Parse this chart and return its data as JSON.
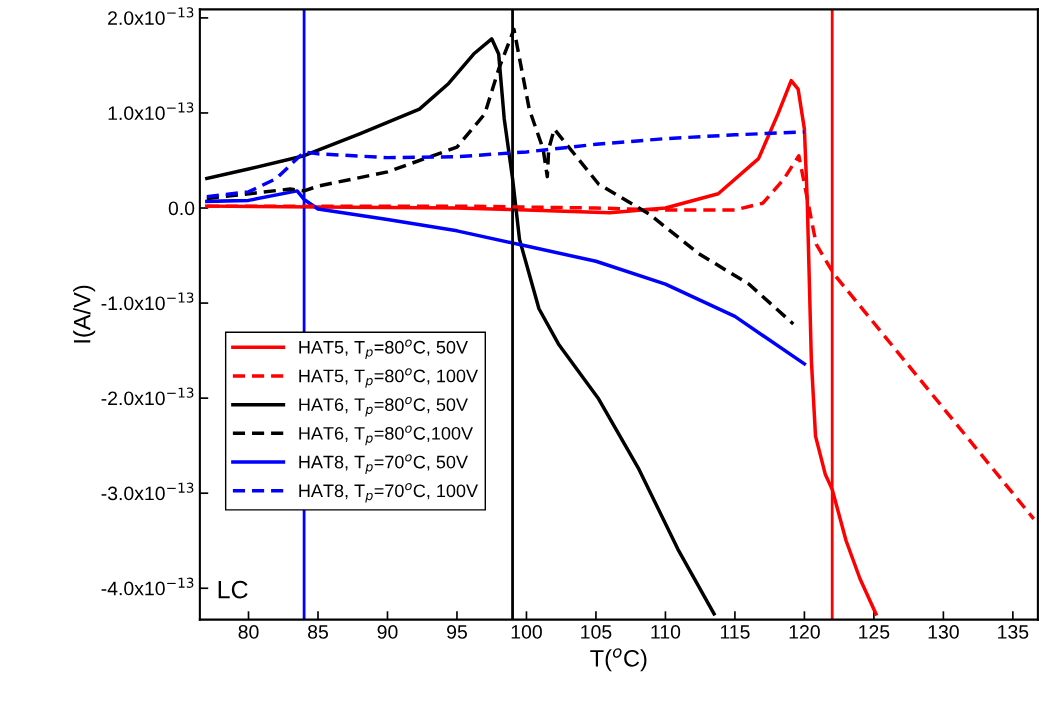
{
  "chart_data": {
    "type": "line",
    "xlabel": "T($^{o}$C)",
    "ylabel": "I(A/V)",
    "xlim": [
      76.5,
      136.8
    ],
    "ylim": [
      -4.33e-13,
      2.09e-13
    ],
    "xticks": [
      80,
      85,
      90,
      95,
      100,
      105,
      110,
      115,
      120,
      125,
      130,
      135
    ],
    "yticks": [
      {
        "value": -4e-13,
        "label": "-4.0x10$^{−13}$"
      },
      {
        "value": -3e-13,
        "label": "-3.0x10$^{−13}$"
      },
      {
        "value": -2e-13,
        "label": "-2.0x10$^{−13}$"
      },
      {
        "value": -1e-13,
        "label": "-1.0x10$^{−13}$"
      },
      {
        "value": 0,
        "label": "0.0"
      },
      {
        "value": 1e-13,
        "label": "1.0x10$^{−13}$"
      },
      {
        "value": 2e-13,
        "label": "2.0x10$^{−13}$"
      }
    ],
    "grid": false,
    "legend": "bottom left",
    "annotations": [
      "LC"
    ],
    "ref_lines": [
      {
        "axis": "x",
        "value": 84,
        "color": "#0000ff"
      },
      {
        "axis": "x",
        "value": 99,
        "color": "#000000"
      },
      {
        "axis": "x",
        "value": 122,
        "color": "#ff0000"
      }
    ],
    "series": [
      {
        "name": "HAT5, T$_{p}$=80$^{o}$C, 50V",
        "color": "#ff0000",
        "line_style": "solid",
        "x": [
          77,
          85,
          95,
          100,
          106,
          110,
          113.8,
          116.7,
          118.1,
          119.05,
          119.55,
          120.0,
          120.2,
          120.5,
          120.8,
          121.5,
          122,
          123,
          124,
          125.15
        ],
        "values": [
          2e-15,
          1e-15,
          0,
          -2e-15,
          -5e-15,
          0,
          1.5e-14,
          5.2e-14,
          9.9e-14,
          1.34e-13,
          1.25e-13,
          8.3e-14,
          1e-14,
          -1.6e-13,
          -2.4e-13,
          -2.8e-13,
          -2.96e-13,
          -3.5e-13,
          -3.9e-13,
          -4.27e-13
        ]
      },
      {
        "name": "HAT5, T$_{p}$=80$^{o}$C, 100V",
        "color": "#ff0000",
        "line_style": "dashed",
        "x": [
          77,
          85,
          95,
          105,
          110,
          115,
          117,
          118.5,
          119.6,
          120.85,
          122.1,
          136.5
        ],
        "values": [
          2e-15,
          2e-15,
          2e-15,
          0,
          -2e-15,
          -2e-15,
          5e-15,
          3e-14,
          5.5e-14,
          -3.8e-14,
          -6.9e-14,
          -3.27e-13
        ]
      },
      {
        "name": "HAT6, T$_{p}$=80$^{o}$C, 50V",
        "color": "#000000",
        "line_style": "solid",
        "x": [
          77,
          80,
          84,
          88,
          92.3,
          94.4,
          96.2,
          97.5,
          98.0,
          98.4,
          99.0,
          99.5,
          100.9,
          102.3,
          105.2,
          108.1,
          110.9,
          113.5
        ],
        "values": [
          3.1e-14,
          4.1e-14,
          5.5e-14,
          7.8e-14,
          1.04e-13,
          1.31e-13,
          1.62e-13,
          1.78e-13,
          1.62e-13,
          9.4e-14,
          3.1e-14,
          -3.3e-14,
          -1.06e-13,
          -1.43e-13,
          -2.01e-13,
          -2.75e-13,
          -3.59e-13,
          -4.27e-13
        ]
      },
      {
        "name": "HAT6, T$_{p}$=80$^{o}$C,100V",
        "color": "#000000",
        "line_style": "dashed",
        "x": [
          77,
          83,
          84,
          85,
          90,
          95,
          97,
          98,
          99.1,
          100.2,
          101.2,
          101.5,
          101.6,
          102,
          105.2,
          108.8,
          112.4,
          116,
          119.2
        ],
        "values": [
          1e-14,
          2e-14,
          1.8e-14,
          2.3e-14,
          3.8e-14,
          6.4e-14,
          9.9e-14,
          1.46e-13,
          1.88e-13,
          1.04e-13,
          6.2e-14,
          3.3e-14,
          6.2e-14,
          8.3e-14,
          2.5e-14,
          -6e-15,
          -4.8e-14,
          -8e-14,
          -1.22e-13
        ]
      },
      {
        "name": "HAT8, T$_{p}$=70$^{o}$C, 50V",
        "color": "#0000ff",
        "line_style": "solid",
        "x": [
          77,
          80,
          83.5,
          84,
          85,
          90,
          95,
          100,
          105,
          110,
          115,
          120
        ],
        "values": [
          7e-15,
          8e-15,
          1.8e-14,
          9e-15,
          -1e-15,
          -1.2e-14,
          -2.4e-14,
          -4e-14,
          -5.6e-14,
          -8e-14,
          -1.14e-13,
          -1.64e-13
        ]
      },
      {
        "name": "HAT8, T$_{p}$=70$^{o}$C, 100V",
        "color": "#0000ff",
        "line_style": "dashed",
        "x": [
          77,
          80,
          82,
          83.5,
          84,
          85,
          90,
          95,
          100,
          105,
          110,
          115,
          120
        ],
        "values": [
          1.2e-14,
          1.7e-14,
          3.1e-14,
          5.2e-14,
          5.9e-14,
          5.7e-14,
          5.3e-14,
          5.4e-14,
          5.9e-14,
          6.7e-14,
          7.3e-14,
          7.7e-14,
          8e-14
        ]
      }
    ]
  }
}
